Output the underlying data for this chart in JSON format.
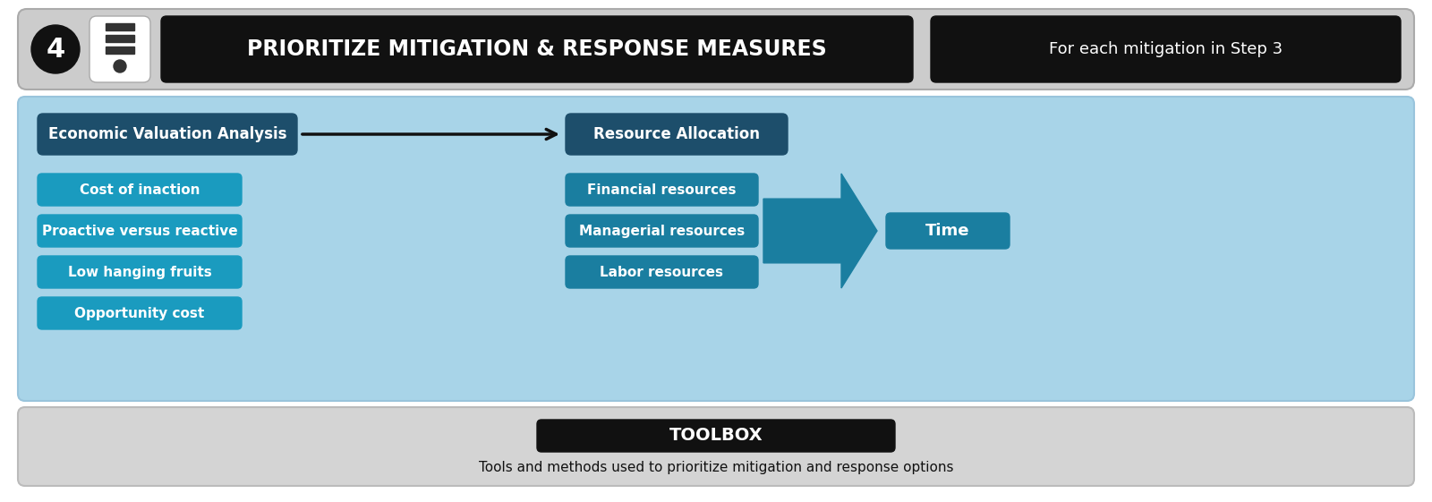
{
  "fig_width": 16.0,
  "fig_height": 5.61,
  "bg_color": "#ffffff",
  "header_bg": "#cccccc",
  "header_text": "PRIORITIZE MITIGATION & RESPONSE MEASURES",
  "header_sub": "For each mitigation in Step 3",
  "step_num": "4",
  "main_bg": "#a8d4e8",
  "toolbox_bg": "#d4d4d4",
  "dark_teal": "#1d4e6b",
  "mid_teal": "#1a7ea0",
  "light_teal": "#1a9bbf",
  "black": "#111111",
  "white": "#ffffff",
  "eva_label": "Economic Valuation Analysis",
  "ra_label": "Resource Allocation",
  "left_items": [
    "Cost of inaction",
    "Proactive versus reactive",
    "Low hanging fruits",
    "Opportunity cost"
  ],
  "right_items": [
    "Financial resources",
    "Managerial resources",
    "Labor resources"
  ],
  "time_label": "Time",
  "toolbox_label": "TOOLBOX",
  "toolbox_sub": "Tools and methods used to prioritize mitigation and response options"
}
